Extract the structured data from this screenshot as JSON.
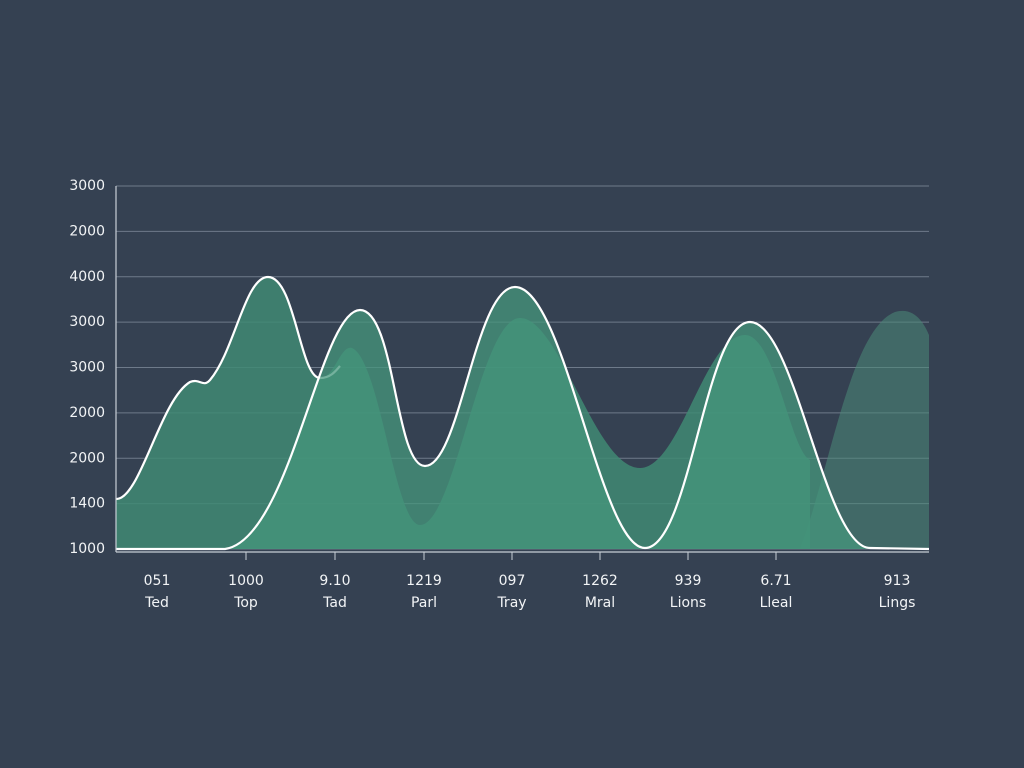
{
  "y_axis_labels": [
    "3000",
    "2000",
    "4000",
    "3000",
    "3000",
    "2000",
    "2000",
    "1400",
    "1000"
  ],
  "x_labels": [
    {
      "value": "051",
      "name": "Ted"
    },
    {
      "value": "1000",
      "name": "Top"
    },
    {
      "value": "9.10",
      "name": "Tad"
    },
    {
      "value": "1219",
      "name": "Parl"
    },
    {
      "value": "097",
      "name": "Tray"
    },
    {
      "value": "1262",
      "name": "Mral"
    },
    {
      "value": "939",
      "name": "Lions"
    },
    {
      "value": "6.71",
      "name": "Lleal"
    },
    {
      "value": "913",
      "name": "Lings"
    }
  ]
}
